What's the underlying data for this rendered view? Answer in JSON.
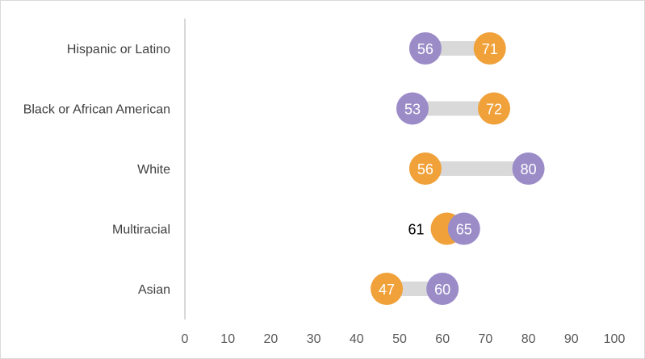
{
  "chart_data": {
    "type": "dumbbell",
    "categories": [
      "Hispanic or Latino",
      "Black or African American",
      "White",
      "Multiracial",
      "Asian"
    ],
    "series": [
      {
        "color": "#F0A13A",
        "values": [
          71,
          72,
          56,
          61,
          47
        ]
      },
      {
        "color": "#9B8CC8",
        "values": [
          56,
          53,
          80,
          65,
          60
        ]
      }
    ],
    "connector_color": "#D9D9D9",
    "xlim": [
      0,
      100
    ],
    "xticks": [
      0,
      10,
      20,
      30,
      40,
      50,
      60,
      70,
      80,
      90,
      100
    ],
    "xtick_labels": [
      "0",
      "10",
      "20",
      "30",
      "40",
      "50",
      "60",
      "70",
      "80",
      "90",
      "100"
    ],
    "grid": false,
    "title": "",
    "xlabel": "",
    "ylabel": ""
  }
}
